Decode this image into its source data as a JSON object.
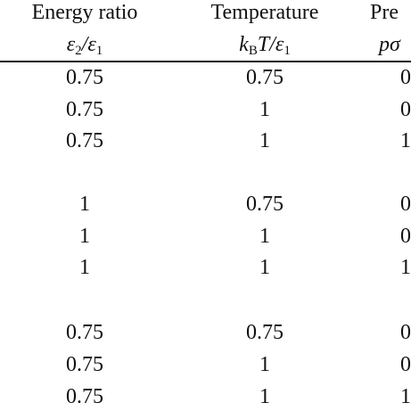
{
  "header": {
    "columns": [
      {
        "title": "Energy ratio",
        "symbol": [
          "ε",
          "2",
          "/ε",
          "1"
        ]
      },
      {
        "title": "Temperature",
        "symbol": [
          "k",
          "B",
          "T/ε",
          "1"
        ]
      },
      {
        "title": "Pre",
        "symbol": [
          "pσ"
        ]
      }
    ]
  },
  "table": {
    "groups": [
      {
        "rows": [
          [
            "0.75",
            "0.75",
            "0"
          ],
          [
            "0.75",
            "1",
            "0"
          ],
          [
            "0.75",
            "1",
            "1"
          ]
        ]
      },
      {
        "rows": [
          [
            "1",
            "0.75",
            "0"
          ],
          [
            "1",
            "1",
            "0"
          ],
          [
            "1",
            "1",
            "1"
          ]
        ]
      },
      {
        "rows": [
          [
            "0.75",
            "0.75",
            "0"
          ],
          [
            "0.75",
            "1",
            "0"
          ],
          [
            "0.75",
            "1",
            "1"
          ]
        ]
      }
    ]
  }
}
